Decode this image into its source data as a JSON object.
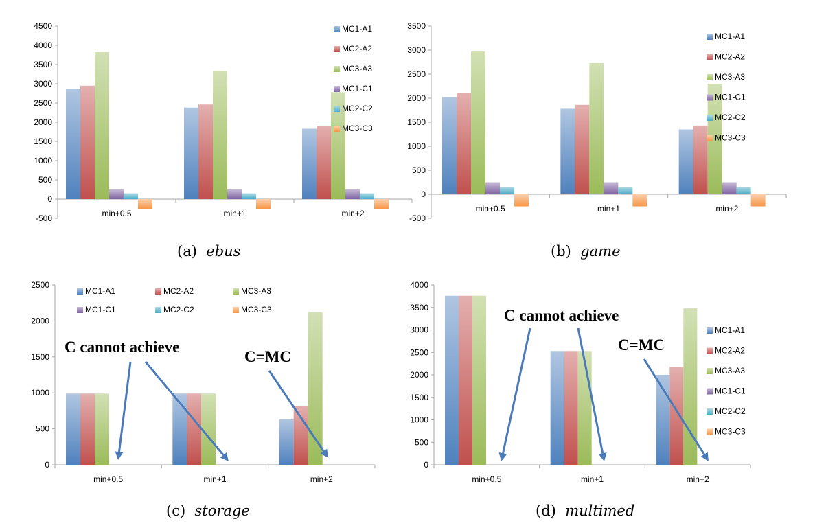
{
  "series_names": [
    "MC1-A1",
    "MC2-A2",
    "MC3-A3",
    "MC1-C1",
    "MC2-C2",
    "MC3-C3"
  ],
  "colors": {
    "MC1-A1": "#4f81bd",
    "MC2-A2": "#c0504d",
    "MC3-A3": "#9bbb59",
    "MC1-C1": "#8064a2",
    "MC2-C2": "#4bacc6",
    "MC3-C3": "#f79646",
    "arrow": "#4a7ab8",
    "axis": "#a6a6a6"
  },
  "chart_data": [
    {
      "id": "a",
      "type": "bar",
      "categories": [
        "min+0.5",
        "min+1",
        "min+2"
      ],
      "ylim": [
        -500,
        4500
      ],
      "yticks": [
        "4500",
        "4000",
        "3500",
        "3000",
        "2500",
        "2000",
        "1500",
        "1000",
        "500",
        "0",
        "-500"
      ],
      "legend": "right",
      "series": [
        {
          "name": "MC1-A1",
          "values": [
            2870,
            2380,
            1830
          ]
        },
        {
          "name": "MC2-A2",
          "values": [
            2950,
            2460,
            1910
          ]
        },
        {
          "name": "MC3-A3",
          "values": [
            3820,
            3330,
            2780
          ]
        },
        {
          "name": "MC1-C1",
          "values": [
            250,
            250,
            250
          ]
        },
        {
          "name": "MC2-C2",
          "values": [
            150,
            150,
            150
          ]
        },
        {
          "name": "MC3-C3",
          "values": [
            -250,
            -250,
            -250
          ]
        }
      ],
      "annotations": []
    },
    {
      "id": "b",
      "type": "bar",
      "categories": [
        "min+0.5",
        "min+1",
        "min+2"
      ],
      "ylim": [
        -500,
        3500
      ],
      "yticks": [
        "3500",
        "3000",
        "2500",
        "2000",
        "1500",
        "1000",
        "500",
        "0",
        "-500"
      ],
      "legend": "right",
      "series": [
        {
          "name": "MC1-A1",
          "values": [
            2020,
            1780,
            1350
          ]
        },
        {
          "name": "MC2-A2",
          "values": [
            2100,
            1860,
            1430
          ]
        },
        {
          "name": "MC3-A3",
          "values": [
            2970,
            2730,
            2300
          ]
        },
        {
          "name": "MC1-C1",
          "values": [
            250,
            250,
            250
          ]
        },
        {
          "name": "MC2-C2",
          "values": [
            150,
            150,
            150
          ]
        },
        {
          "name": "MC3-C3",
          "values": [
            -250,
            -250,
            -250
          ]
        }
      ],
      "annotations": []
    },
    {
      "id": "c",
      "type": "bar",
      "categories": [
        "min+0.5",
        "min+1",
        "min+2"
      ],
      "ylim": [
        0,
        2500
      ],
      "yticks": [
        "2500",
        "2000",
        "1500",
        "1000",
        "500",
        "0"
      ],
      "legend": "top",
      "series": [
        {
          "name": "MC1-A1",
          "values": [
            990,
            990,
            630
          ]
        },
        {
          "name": "MC2-A2",
          "values": [
            990,
            990,
            820
          ]
        },
        {
          "name": "MC3-A3",
          "values": [
            990,
            990,
            2120
          ]
        },
        {
          "name": "MC1-C1",
          "values": [
            0,
            0,
            0
          ]
        },
        {
          "name": "MC2-C2",
          "values": [
            0,
            0,
            0
          ]
        },
        {
          "name": "MC3-C3",
          "values": [
            0,
            0,
            0
          ]
        }
      ],
      "annotations": [
        "C cannot achieve",
        "C=MC"
      ]
    },
    {
      "id": "d",
      "type": "bar",
      "categories": [
        "min+0.5",
        "min+1",
        "min+2"
      ],
      "ylim": [
        0,
        4000
      ],
      "yticks": [
        "4000",
        "3500",
        "3000",
        "2500",
        "2000",
        "1500",
        "1000",
        "500",
        "0"
      ],
      "legend": "right",
      "series": [
        {
          "name": "MC1-A1",
          "values": [
            3760,
            2530,
            2000
          ]
        },
        {
          "name": "MC2-A2",
          "values": [
            3760,
            2530,
            2180
          ]
        },
        {
          "name": "MC3-A3",
          "values": [
            3760,
            2530,
            3480
          ]
        },
        {
          "name": "MC1-C1",
          "values": [
            0,
            0,
            0
          ]
        },
        {
          "name": "MC2-C2",
          "values": [
            0,
            0,
            0
          ]
        },
        {
          "name": "MC3-C3",
          "values": [
            0,
            0,
            0
          ]
        }
      ],
      "annotations": [
        "C cannot achieve",
        "C=MC"
      ]
    }
  ],
  "captions": [
    {
      "label": "(a)",
      "name": "ebus"
    },
    {
      "label": "(b)",
      "name": "game"
    },
    {
      "label": "(c)",
      "name": "storage"
    },
    {
      "label": "(d)",
      "name": "multimed"
    }
  ]
}
